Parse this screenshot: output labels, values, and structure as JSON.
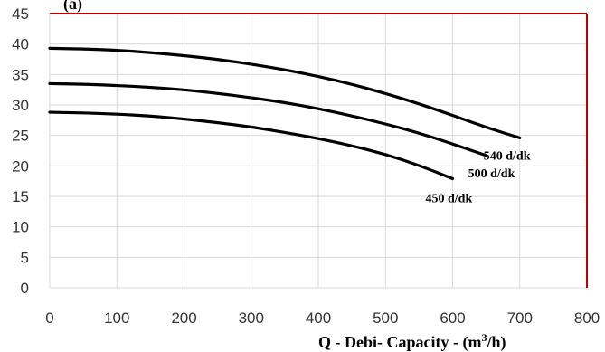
{
  "chart_data": {
    "type": "line",
    "title": "",
    "partial_header": "(a)",
    "xlabel_prefix": "Q - Debi- Capacity - (m",
    "xlabel_sup": "3",
    "xlabel_suffix": "/h)",
    "ylabel": "",
    "xlim": [
      0,
      800
    ],
    "ylim": [
      0,
      45
    ],
    "x_ticks": [
      "0",
      "100",
      "200",
      "300",
      "400",
      "500",
      "600",
      "700",
      "800"
    ],
    "y_ticks": [
      "0",
      "5",
      "10",
      "15",
      "20",
      "25",
      "30",
      "35",
      "40",
      "45"
    ],
    "grid": true,
    "frame_color_top": "#c00000",
    "frame_color_right": "#c00000",
    "series": [
      {
        "name": "540 d/dk",
        "color": "#000000",
        "x": [
          0,
          50,
          100,
          150,
          200,
          250,
          300,
          350,
          400,
          450,
          500,
          550,
          600,
          650,
          700
        ],
        "y": [
          39.3,
          39.2,
          39.0,
          38.6,
          38.1,
          37.5,
          36.7,
          35.8,
          34.7,
          33.4,
          31.9,
          30.2,
          28.3,
          26.3,
          24.6
        ]
      },
      {
        "name": "500 d/dk",
        "color": "#000000",
        "x": [
          0,
          50,
          100,
          150,
          200,
          250,
          300,
          350,
          400,
          450,
          500,
          550,
          600,
          650
        ],
        "y": [
          33.5,
          33.4,
          33.2,
          32.9,
          32.5,
          31.9,
          31.2,
          30.4,
          29.4,
          28.2,
          26.9,
          25.4,
          23.6,
          21.7
        ]
      },
      {
        "name": "450 d/dk",
        "color": "#000000",
        "x": [
          0,
          50,
          100,
          150,
          200,
          250,
          300,
          350,
          400,
          450,
          500,
          550,
          600
        ],
        "y": [
          28.8,
          28.7,
          28.5,
          28.2,
          27.7,
          27.1,
          26.4,
          25.5,
          24.5,
          23.3,
          21.9,
          20.1,
          17.9
        ]
      }
    ]
  }
}
